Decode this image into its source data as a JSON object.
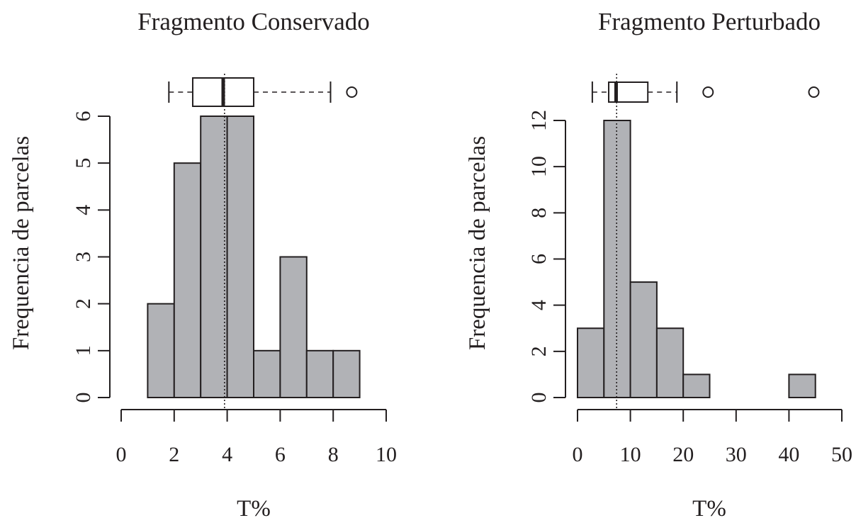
{
  "colors": {
    "bar_fill": "#b1b2b6",
    "ink": "#231f20"
  },
  "chart_data": [
    {
      "type": "bar",
      "title": "Fragmento Conservado",
      "xlabel": "T%",
      "ylabel": "Frequencia de parcelas",
      "x_ticks": [
        0,
        2,
        4,
        6,
        8,
        10
      ],
      "y_ticks": [
        0,
        1,
        2,
        3,
        4,
        5,
        6
      ],
      "xlim": [
        0,
        10
      ],
      "ylim": [
        0,
        6
      ],
      "bin_edges": [
        1,
        2,
        3,
        4,
        5,
        6,
        7,
        8,
        9
      ],
      "values": [
        2,
        5,
        6,
        6,
        1,
        3,
        1,
        1
      ],
      "median_line": 3.9,
      "boxplot": {
        "whisker_low": 1.8,
        "q1": 2.7,
        "median": 3.85,
        "q3": 5.0,
        "whisker_high": 7.9,
        "outliers": [
          8.7
        ]
      }
    },
    {
      "type": "bar",
      "title": "Fragmento Perturbado",
      "xlabel": "T%",
      "ylabel": "Frequencia de parcelas",
      "x_ticks": [
        0,
        10,
        20,
        30,
        40,
        50
      ],
      "y_ticks": [
        0,
        2,
        4,
        6,
        8,
        10,
        12
      ],
      "xlim": [
        0,
        50
      ],
      "ylim": [
        0,
        12
      ],
      "bin_edges": [
        0,
        5,
        10,
        15,
        20,
        25,
        30,
        35,
        40,
        45
      ],
      "values": [
        3,
        12,
        5,
        3,
        1,
        0,
        0,
        0,
        1
      ],
      "median_line": 7.4,
      "boxplot": {
        "whisker_low": 2.8,
        "q1": 5.9,
        "median": 7.3,
        "q3": 13.3,
        "whisker_high": 18.8,
        "outliers": [
          24.7,
          44.7
        ]
      }
    }
  ]
}
